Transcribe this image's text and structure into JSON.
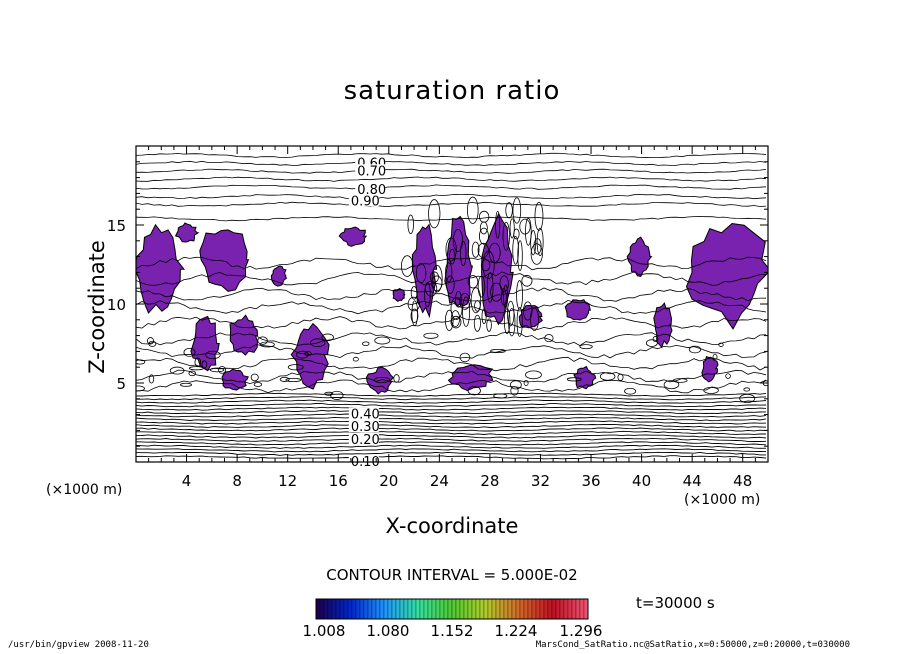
{
  "chart_data": {
    "type": "contour",
    "title": "saturation ratio",
    "xlabel": "X-coordinate",
    "ylabel": "Z-coordinate",
    "x_unit": "(×1000 m)",
    "z_unit": "(×1000 m)",
    "xlim": [
      0,
      50
    ],
    "zlim": [
      0,
      20
    ],
    "x_ticks": [
      "4",
      "8",
      "12",
      "16",
      "20",
      "24",
      "28",
      "32",
      "36",
      "40",
      "44",
      "48"
    ],
    "z_ticks": [
      "5",
      "10",
      "15"
    ],
    "contour_interval_label": "CONTOUR INTERVAL = 5.000E-02",
    "contour_labels": [
      {
        "text": "0.60",
        "x": 17.5,
        "z": 18.9
      },
      {
        "text": "0.70",
        "x": 17.5,
        "z": 18.4
      },
      {
        "text": "0.80",
        "x": 17.5,
        "z": 17.2
      },
      {
        "text": "0.90",
        "x": 17.0,
        "z": 16.5
      },
      {
        "text": "0.40",
        "x": 17.0,
        "z": 3.0
      },
      {
        "text": "0.30",
        "x": 17.0,
        "z": 2.2
      },
      {
        "text": "0.20",
        "x": 17.0,
        "z": 1.4
      },
      {
        "text": "0.10",
        "x": 17.0,
        "z": 0.0
      }
    ],
    "shaded_regions": [
      {
        "cx": 1.8,
        "cz": 12.2,
        "rx": 1.8,
        "rz": 2.8
      },
      {
        "cx": 4.0,
        "cz": 14.5,
        "rx": 0.8,
        "rz": 0.6
      },
      {
        "cx": 7.0,
        "cz": 12.8,
        "rx": 2.0,
        "rz": 2.0
      },
      {
        "cx": 11.3,
        "cz": 11.8,
        "rx": 0.6,
        "rz": 0.6
      },
      {
        "cx": 5.5,
        "cz": 7.5,
        "rx": 1.1,
        "rz": 1.6
      },
      {
        "cx": 8.5,
        "cz": 8.0,
        "rx": 1.2,
        "rz": 1.3
      },
      {
        "cx": 13.8,
        "cz": 6.8,
        "rx": 1.4,
        "rz": 2.0
      },
      {
        "cx": 7.8,
        "cz": 5.2,
        "rx": 1.0,
        "rz": 0.6
      },
      {
        "cx": 17.2,
        "cz": 14.3,
        "rx": 1.0,
        "rz": 0.6
      },
      {
        "cx": 20.8,
        "cz": 10.6,
        "rx": 0.5,
        "rz": 0.4
      },
      {
        "cx": 22.8,
        "cz": 12.2,
        "rx": 0.9,
        "rz": 3.0
      },
      {
        "cx": 25.5,
        "cz": 12.4,
        "rx": 1.0,
        "rz": 3.0
      },
      {
        "cx": 28.5,
        "cz": 12.0,
        "rx": 1.2,
        "rz": 3.4
      },
      {
        "cx": 31.2,
        "cz": 9.2,
        "rx": 0.9,
        "rz": 0.8
      },
      {
        "cx": 19.3,
        "cz": 5.1,
        "rx": 1.0,
        "rz": 0.8
      },
      {
        "cx": 26.5,
        "cz": 5.4,
        "rx": 1.8,
        "rz": 0.8
      },
      {
        "cx": 35.0,
        "cz": 9.6,
        "rx": 1.0,
        "rz": 0.7
      },
      {
        "cx": 39.8,
        "cz": 13.0,
        "rx": 0.9,
        "rz": 1.2
      },
      {
        "cx": 41.7,
        "cz": 8.7,
        "rx": 0.7,
        "rz": 1.3
      },
      {
        "cx": 35.5,
        "cz": 5.3,
        "rx": 0.8,
        "rz": 0.7
      },
      {
        "cx": 46.7,
        "cz": 12.0,
        "rx": 3.3,
        "rz": 3.2
      },
      {
        "cx": 45.4,
        "cz": 5.9,
        "rx": 0.6,
        "rz": 0.8
      }
    ],
    "shade_color": "#7a22b0",
    "colorbar": {
      "tick_labels": [
        "1.008",
        "1.080",
        "1.152",
        "1.224",
        "1.296"
      ],
      "colors": [
        "#1a0050",
        "#0028d2",
        "#1e96ff",
        "#34e0a0",
        "#4ecb32",
        "#b0cc2a",
        "#d26a28",
        "#c01020",
        "#f05070"
      ]
    },
    "time_label": "t=30000  s"
  },
  "footer": {
    "left": "/usr/bin/gpview   2008-11-20",
    "right": "MarsCond_SatRatio.nc@SatRatio,x=0:50000,z=0:20000,t=030000"
  }
}
